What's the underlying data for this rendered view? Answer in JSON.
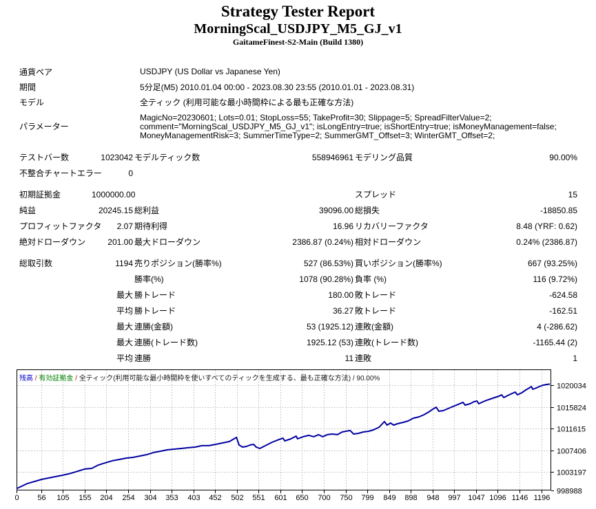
{
  "report": {
    "title": "Strategy Tester Report",
    "subtitle": "MorningScal_USDJPY_M5_GJ_v1",
    "server": "GaitameFinest-S2-Main (Build 1380)"
  },
  "info_rows": [
    {
      "label": "通貨ペア",
      "value": "USDJPY (US Dollar vs Japanese Yen)",
      "param": false
    },
    {
      "label": "期間",
      "value": "5分足(M5) 2010.01.04 00:00 - 2023.08.30 23:55 (2010.01.01 - 2023.08.31)",
      "param": false
    },
    {
      "label": "モデル",
      "value": "全ティック (利用可能な最小時間枠による最も正確な方法)",
      "param": false
    },
    {
      "label": "パラメーター",
      "value": "MagicNo=20230601; Lots=0.01; StopLoss=55; TakeProfit=30; Slippage=5; SpreadFilterValue=2;\ncomment=\"MorningScal_USDJPY_M5_GJ_v1\"; isLongEntry=true; isShortEntry=true; isMoneyManagement=false;\nMoneyManagementRisk=3; SummerTimeType=2; SummerGMT_Offset=3; WinterGMT_Offset=2;",
      "param": true
    }
  ],
  "stat_rows": [
    [
      "テストバー数",
      "1023042",
      "モデルティック数",
      "558946961",
      "モデリング品質",
      "90.00%"
    ],
    [
      "不整合チャートエラー",
      "0",
      "",
      "",
      "",
      ""
    ],
    [],
    [
      "初期証拠金",
      "1000000.00",
      "",
      "",
      "スプレッド",
      "15"
    ],
    [
      "純益",
      "20245.15",
      "総利益",
      "39096.00",
      "総損失",
      "-18850.85"
    ],
    [
      "プロフィットファクタ",
      "2.07",
      "期待利得",
      "16.96",
      "リカバリーファクタ",
      "8.48 (YRF: 0.62)"
    ],
    [
      "絶対ドローダウン",
      "201.00",
      "最大ドローダウン",
      "2386.87 (0.24%)",
      "相対ドローダウン",
      "0.24% (2386.87)"
    ],
    [],
    [
      "総取引数",
      "1194",
      "売りポジション(勝率%)",
      "527 (86.53%)",
      "買いポジション(勝率%)",
      "667 (93.25%)"
    ],
    [
      "",
      "",
      "勝率(%)",
      "1078 (90.28%)",
      "負率 (%)",
      "116 (9.72%)"
    ],
    [
      "",
      "最大",
      "勝トレード",
      "180.00",
      "敗トレード",
      "-624.58"
    ],
    [
      "",
      "平均",
      "勝トレード",
      "36.27",
      "敗トレード",
      "-162.51"
    ],
    [
      "",
      "最大",
      "連勝(金額)",
      "53 (1925.12)",
      "連敗(金額)",
      "4 (-286.62)"
    ],
    [
      "",
      "最大",
      "連勝(トレード数)",
      "1925.12 (53)",
      "連敗(トレード数)",
      "-1165.44 (2)"
    ],
    [
      "",
      "平均",
      "連勝",
      "11",
      "連敗",
      "1"
    ]
  ],
  "chart_data": {
    "type": "line",
    "legend": {
      "balance": "残高",
      "sep1": " / ",
      "equity": "有効証拠金",
      "sep2": " / ",
      "rest": "全ティック(利用可能な最小時間枠を使いすべてのティックを生成する、最も正確な方法) / 90.00%"
    },
    "line_color": "#0000a0",
    "grid_color": "#c8c8c8",
    "x_ticks": [
      0,
      56,
      105,
      155,
      204,
      254,
      304,
      353,
      403,
      452,
      502,
      551,
      601,
      650,
      700,
      750,
      799,
      849,
      898,
      948,
      997,
      1047,
      1096,
      1146,
      1196
    ],
    "y_ticks": [
      998988,
      1003197,
      1007406,
      1011615,
      1015824,
      1020034
    ],
    "xlim": [
      0,
      1218
    ],
    "ylim": [
      999654,
      1023096
    ],
    "points": [
      [
        0,
        1000000
      ],
      [
        25,
        1001000
      ],
      [
        57,
        1001790
      ],
      [
        80,
        1002190
      ],
      [
        104,
        1002590
      ],
      [
        119,
        1002860
      ],
      [
        135,
        1003260
      ],
      [
        155,
        1003790
      ],
      [
        171,
        1003920
      ],
      [
        187,
        1004590
      ],
      [
        202,
        1004990
      ],
      [
        218,
        1005390
      ],
      [
        234,
        1005650
      ],
      [
        250,
        1005920
      ],
      [
        265,
        1006050
      ],
      [
        281,
        1006320
      ],
      [
        297,
        1006590
      ],
      [
        312,
        1006990
      ],
      [
        328,
        1007250
      ],
      [
        344,
        1007520
      ],
      [
        359,
        1007650
      ],
      [
        375,
        1007780
      ],
      [
        391,
        1007920
      ],
      [
        407,
        1008050
      ],
      [
        422,
        1008320
      ],
      [
        438,
        1008320
      ],
      [
        454,
        1008580
      ],
      [
        469,
        1008850
      ],
      [
        485,
        1009120
      ],
      [
        501,
        1009920
      ],
      [
        507,
        1008450
      ],
      [
        515,
        1008050
      ],
      [
        524,
        1008180
      ],
      [
        532,
        1008450
      ],
      [
        540,
        1008580
      ],
      [
        546,
        1008050
      ],
      [
        554,
        1007780
      ],
      [
        567,
        1008320
      ],
      [
        582,
        1008980
      ],
      [
        598,
        1009520
      ],
      [
        607,
        1009780
      ],
      [
        611,
        1009250
      ],
      [
        625,
        1009650
      ],
      [
        637,
        1010180
      ],
      [
        640,
        1009650
      ],
      [
        653,
        1010050
      ],
      [
        666,
        1010320
      ],
      [
        677,
        1010050
      ],
      [
        688,
        1010450
      ],
      [
        697,
        1010050
      ],
      [
        708,
        1010450
      ],
      [
        719,
        1010580
      ],
      [
        731,
        1010450
      ],
      [
        742,
        1010980
      ],
      [
        750,
        1011110
      ],
      [
        760,
        1011250
      ],
      [
        768,
        1010580
      ],
      [
        779,
        1010710
      ],
      [
        790,
        1010980
      ],
      [
        802,
        1011110
      ],
      [
        813,
        1011380
      ],
      [
        826,
        1011910
      ],
      [
        838,
        1012980
      ],
      [
        844,
        1012310
      ],
      [
        852,
        1012710
      ],
      [
        859,
        1012310
      ],
      [
        868,
        1012580
      ],
      [
        881,
        1012840
      ],
      [
        892,
        1013110
      ],
      [
        904,
        1013640
      ],
      [
        917,
        1013910
      ],
      [
        928,
        1014310
      ],
      [
        939,
        1014840
      ],
      [
        948,
        1015370
      ],
      [
        956,
        1015770
      ],
      [
        962,
        1014980
      ],
      [
        972,
        1015110
      ],
      [
        983,
        1015510
      ],
      [
        994,
        1015910
      ],
      [
        1006,
        1016310
      ],
      [
        1017,
        1016710
      ],
      [
        1022,
        1016170
      ],
      [
        1033,
        1016440
      ],
      [
        1042,
        1016840
      ],
      [
        1049,
        1016970
      ],
      [
        1053,
        1016440
      ],
      [
        1063,
        1016840
      ],
      [
        1071,
        1017110
      ],
      [
        1080,
        1017370
      ],
      [
        1089,
        1017640
      ],
      [
        1099,
        1017900
      ],
      [
        1105,
        1018170
      ],
      [
        1110,
        1017640
      ],
      [
        1119,
        1018040
      ],
      [
        1129,
        1018440
      ],
      [
        1136,
        1018700
      ],
      [
        1141,
        1018170
      ],
      [
        1151,
        1018570
      ],
      [
        1160,
        1019100
      ],
      [
        1168,
        1019500
      ],
      [
        1173,
        1019770
      ],
      [
        1176,
        1019240
      ],
      [
        1184,
        1019500
      ],
      [
        1191,
        1019770
      ],
      [
        1199,
        1020030
      ],
      [
        1207,
        1020170
      ],
      [
        1215,
        1020245
      ]
    ]
  }
}
